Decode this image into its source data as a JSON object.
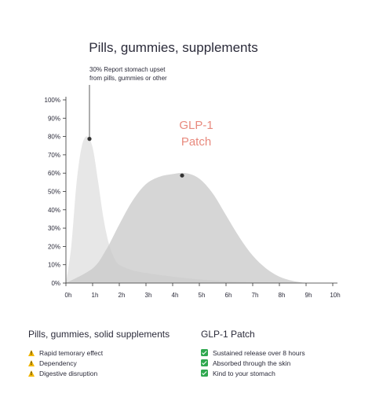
{
  "chart_data": {
    "type": "area",
    "title": "Pills, gummies, supplements",
    "xlabel": "",
    "ylabel": "",
    "x_ticks": [
      "0h",
      "1h",
      "2h",
      "3h",
      "4h",
      "5h",
      "6h",
      "7h",
      "8h",
      "9h",
      "10h"
    ],
    "y_ticks": [
      "0%",
      "10%",
      "20%",
      "30%",
      "40%",
      "50%",
      "60%",
      "70%",
      "80%",
      "90%",
      "100%"
    ],
    "xlim": [
      0,
      10
    ],
    "ylim": [
      0,
      100
    ],
    "grid": false,
    "series": [
      {
        "name": "",
        "color": "#e3e3e3",
        "x": [
          0,
          0.2,
          0.4,
          0.6,
          0.8,
          1.0,
          1.2,
          1.4,
          1.6,
          1.8,
          2.0,
          2.5,
          3,
          4,
          5,
          6,
          7,
          8,
          9
        ],
        "y": [
          0,
          20,
          55,
          75,
          80,
          74,
          56,
          36,
          22,
          14,
          10,
          7,
          5.5,
          3.5,
          2,
          1,
          0.5,
          0.2,
          0
        ]
      },
      {
        "name": "",
        "color": "#c8c8c8",
        "x": [
          0,
          1,
          1.5,
          2,
          2.5,
          3,
          3.5,
          4,
          4.5,
          5,
          5.5,
          6,
          6.5,
          7,
          7.5,
          8,
          8.5,
          9
        ],
        "y": [
          0,
          8,
          18,
          32,
          45,
          54,
          58,
          59.5,
          60,
          57,
          49,
          37,
          25,
          15,
          8,
          3.5,
          1.2,
          0
        ]
      }
    ],
    "annotations": [
      {
        "text": "30% Report stomach upset",
        "x": 1,
        "y": 80
      },
      {
        "text": "from pills, gummies or other",
        "x": 1,
        "y": 80
      },
      {
        "text": "GLP-1",
        "x": 4.5,
        "y": 60
      },
      {
        "text": "Patch",
        "x": 4.5,
        "y": 60
      }
    ]
  },
  "legend": {
    "left": {
      "heading": "Pills, gummies, solid supplements",
      "icon": "warning-icon",
      "items": [
        "Rapid temorary effect",
        "Dependency",
        "Digestive disruption"
      ]
    },
    "right": {
      "heading": "GLP-1 Patch",
      "icon": "check-icon",
      "items": [
        "Sustained release over 8 hours",
        "Absorbed through the skin",
        "Kind to your stomach"
      ]
    }
  }
}
